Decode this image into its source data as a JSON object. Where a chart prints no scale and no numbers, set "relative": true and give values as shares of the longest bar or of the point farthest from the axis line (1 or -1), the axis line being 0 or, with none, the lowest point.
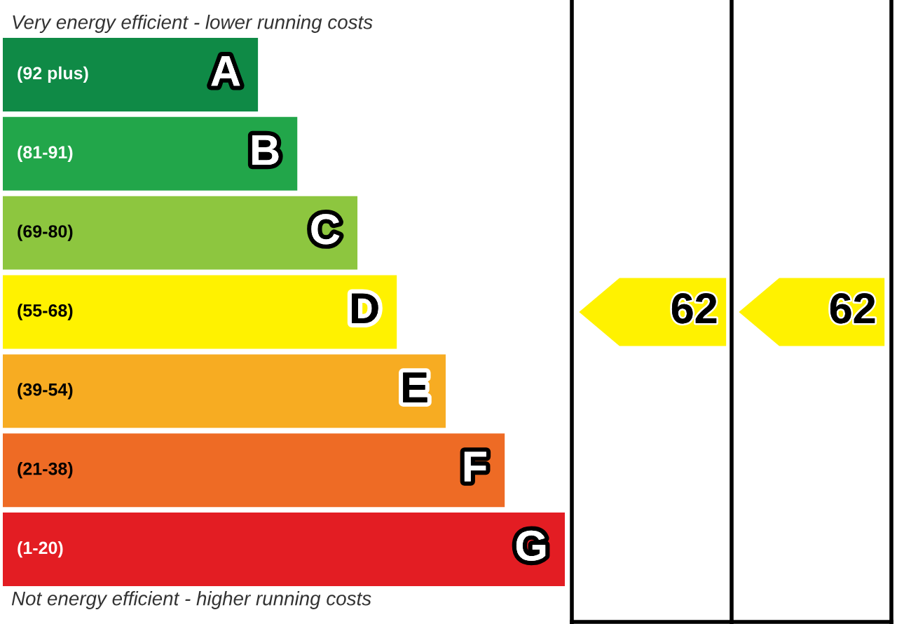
{
  "chart_data": {
    "type": "bar",
    "orientation": "horizontal",
    "relative": true,
    "title": "Very energy efficient - lower running costs",
    "categories": [
      "(92 plus)",
      "(81-91)",
      "(69-80)",
      "(55-68)",
      "(39-54)",
      "(21-38)",
      "(1-20)"
    ],
    "values": [
      0.454,
      0.524,
      0.631,
      0.701,
      0.788,
      0.893,
      1.0
    ],
    "colors": [
      "#0f8a46",
      "#22a64a",
      "#8dc63f",
      "#fff200",
      "#f7ac22",
      "#ee6b25",
      "#e31d23"
    ],
    "annotations": [
      {
        "text": "A",
        "y": "(92 plus)"
      },
      {
        "text": "B",
        "y": "(81-91)"
      },
      {
        "text": "C",
        "y": "(69-80)"
      },
      {
        "text": "D",
        "y": "(55-68)"
      },
      {
        "text": "E",
        "y": "(39-54)"
      },
      {
        "text": "F",
        "y": "(21-38)"
      },
      {
        "text": "G",
        "y": "(1-20)"
      },
      "62",
      "62",
      "Not energy efficient - higher running costs"
    ]
  }
}
